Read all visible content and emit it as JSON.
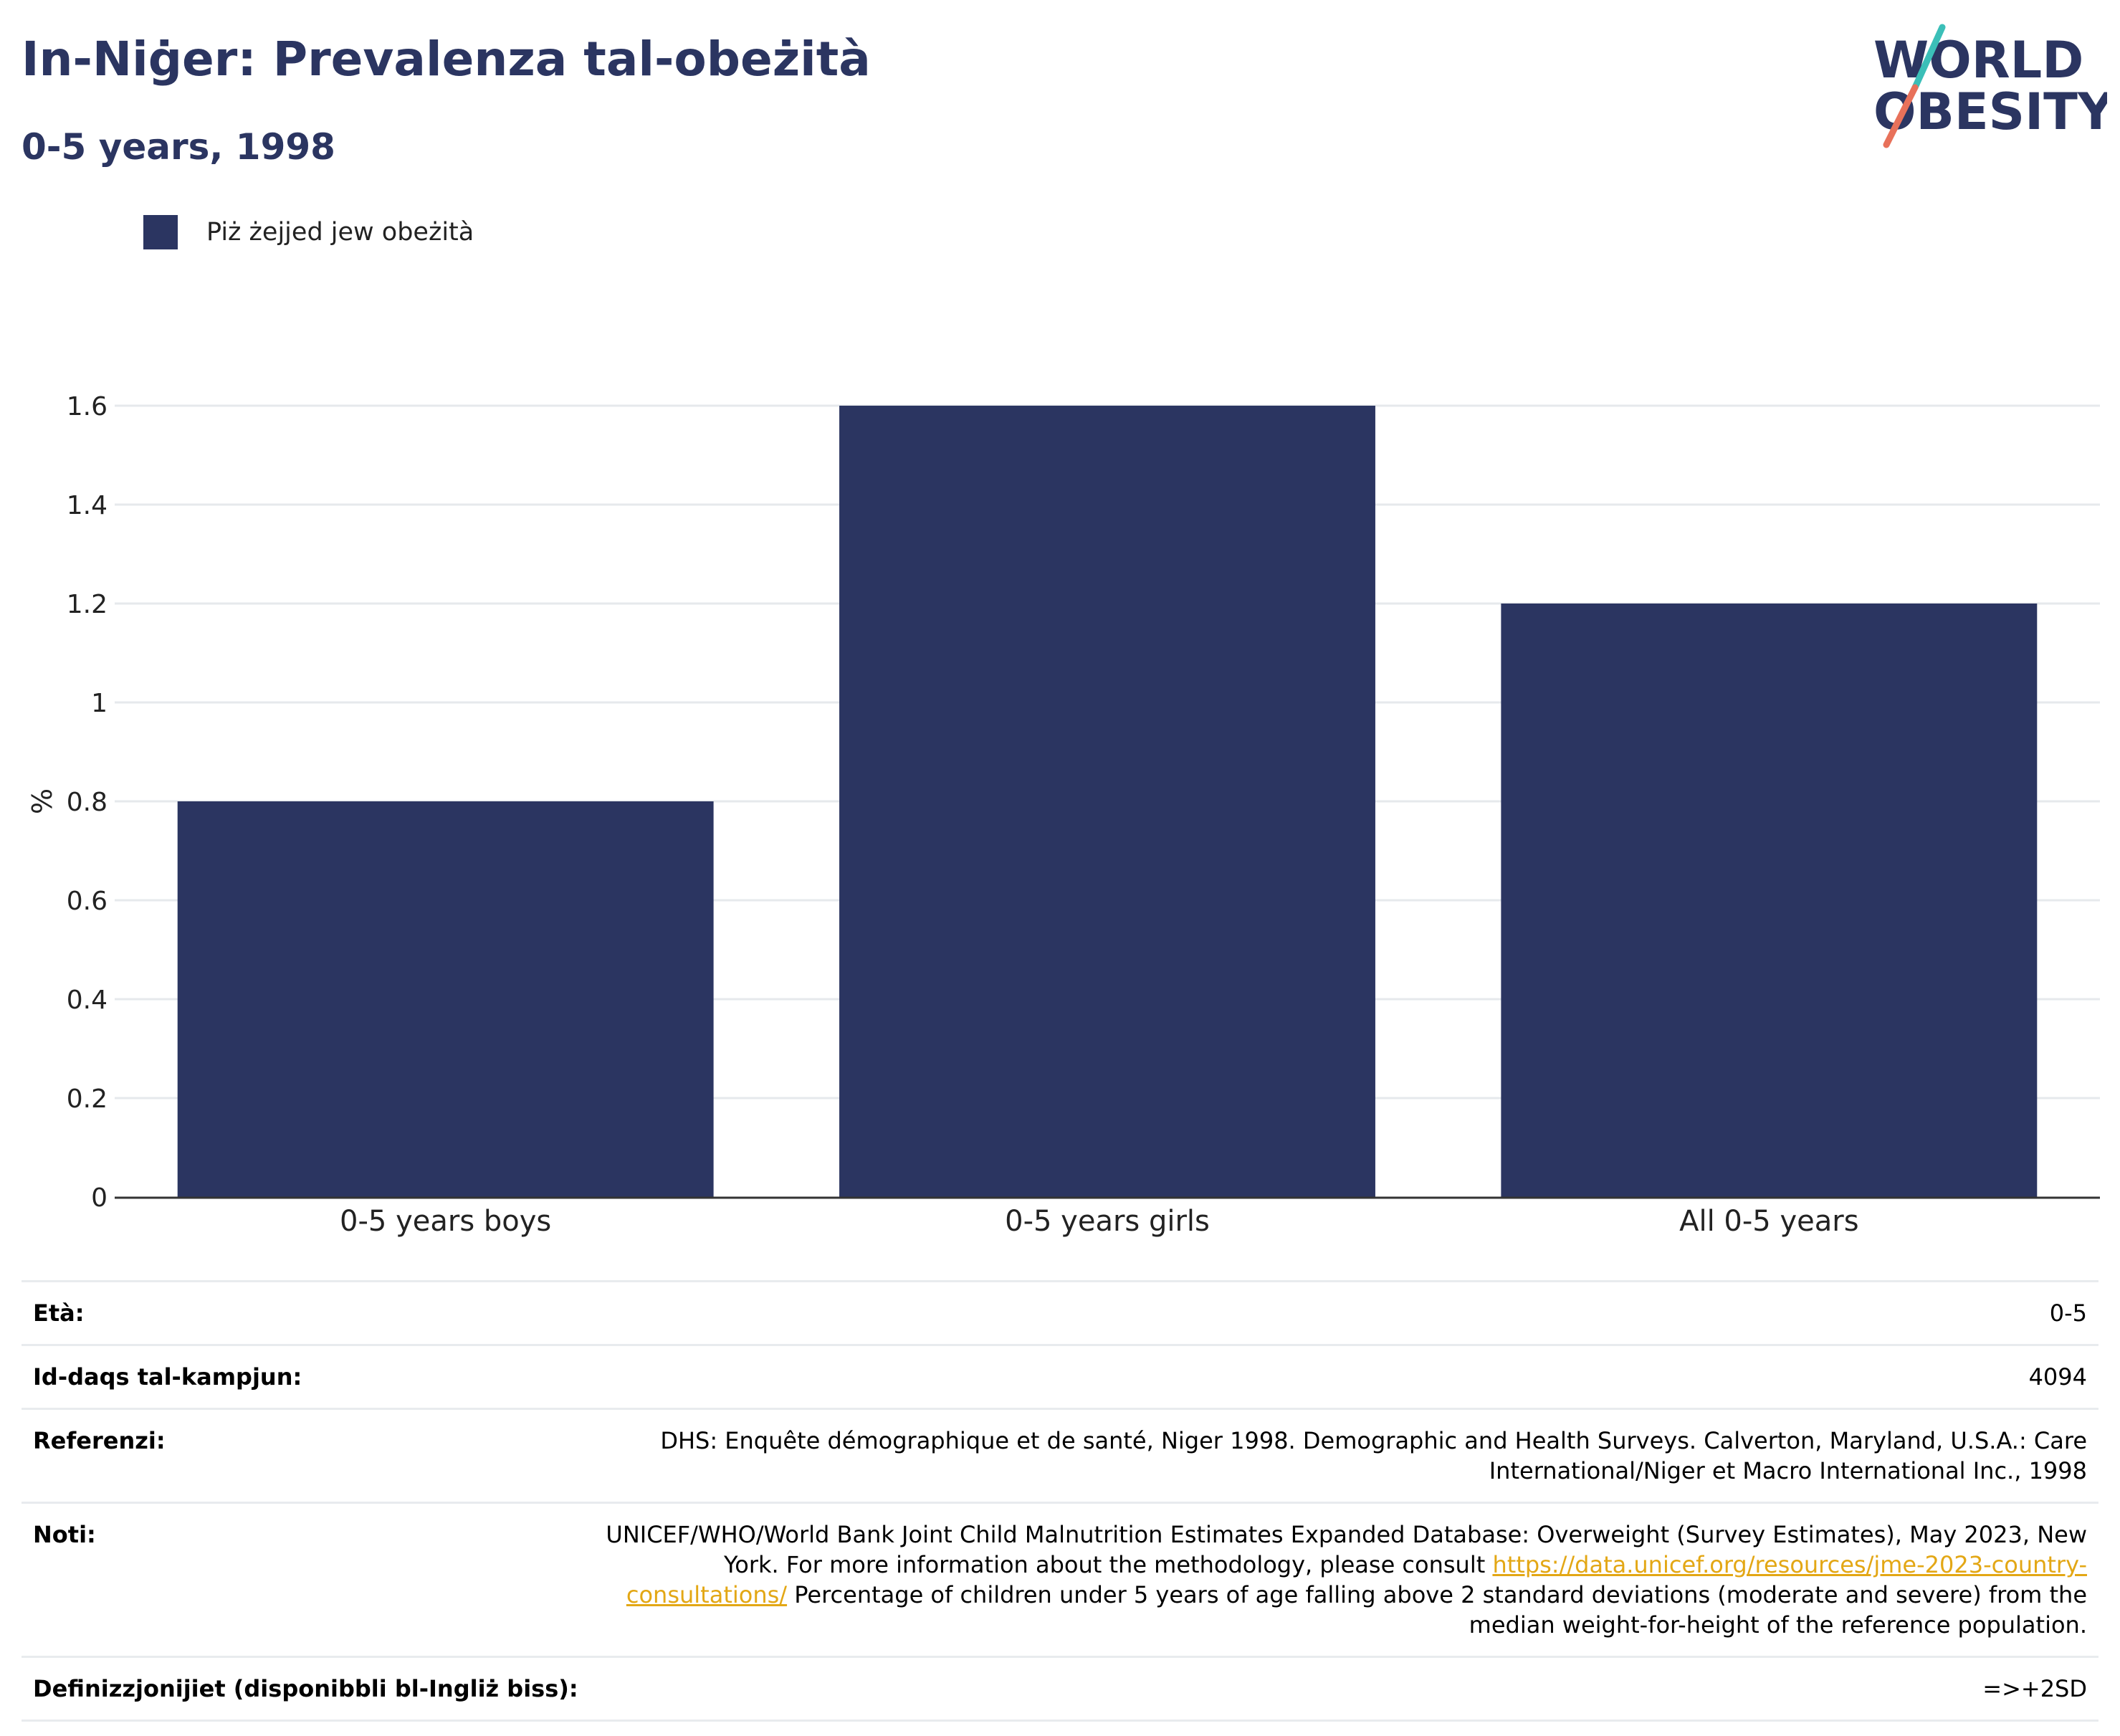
{
  "header": {
    "title": "In-Niġer: Prevalenza tal-obeżità",
    "subtitle": "0-5 years, 1998"
  },
  "logo": {
    "line1": "WORLD",
    "line2": "OBESITY",
    "colors": {
      "text": "#2b3561",
      "slash_top": "#3bbfb8",
      "slash_bottom": "#e8715a"
    }
  },
  "colors": {
    "bar": "#2b3561",
    "grid": "#e6e9ec",
    "axis": "#333333"
  },
  "chart_data": {
    "type": "bar",
    "categories": [
      "0-5 years boys",
      "0-5 years girls",
      "All 0-5 years"
    ],
    "series": [
      {
        "name": "Piż żejjed jew obeżità",
        "values": [
          0.8,
          1.6,
          1.2
        ]
      }
    ],
    "ylabel": "%",
    "ylim": [
      0,
      1.6
    ],
    "yticks": [
      "0",
      "0.2",
      "0.4",
      "0.6",
      "0.8",
      "1",
      "1.2",
      "1.4",
      "1.6"
    ],
    "grid": true,
    "legend_position": "top-left"
  },
  "info": [
    {
      "key": "Età:",
      "value": "0-5"
    },
    {
      "key": "Id-daqs tal-kampjun:",
      "value": "4094"
    },
    {
      "key": "Referenzi:",
      "value": "DHS: Enquête démographique et de santé, Niger 1998. Demographic and Health Surveys. Calverton, Maryland, U.S.A.: Care International/Niger et Macro International Inc., 1998"
    },
    {
      "key": "Noti:",
      "value": "UNICEF/WHO/World Bank Joint Child Malnutrition Estimates Expanded Database: Overweight (Survey Estimates), May 2023, New York. For more information about the methodology, please consult",
      "link": "https://data.unicef.org/resources/jme-2023-country-consultations/",
      "value_after": "Percentage of children under 5 years of age falling above 2 standard deviations (moderate and severe) from the median weight-for-height of the reference population."
    },
    {
      "key": "Definizzjonijiet (disponibbli bl-Ingliż biss):",
      "value": "=>+2SD"
    }
  ]
}
